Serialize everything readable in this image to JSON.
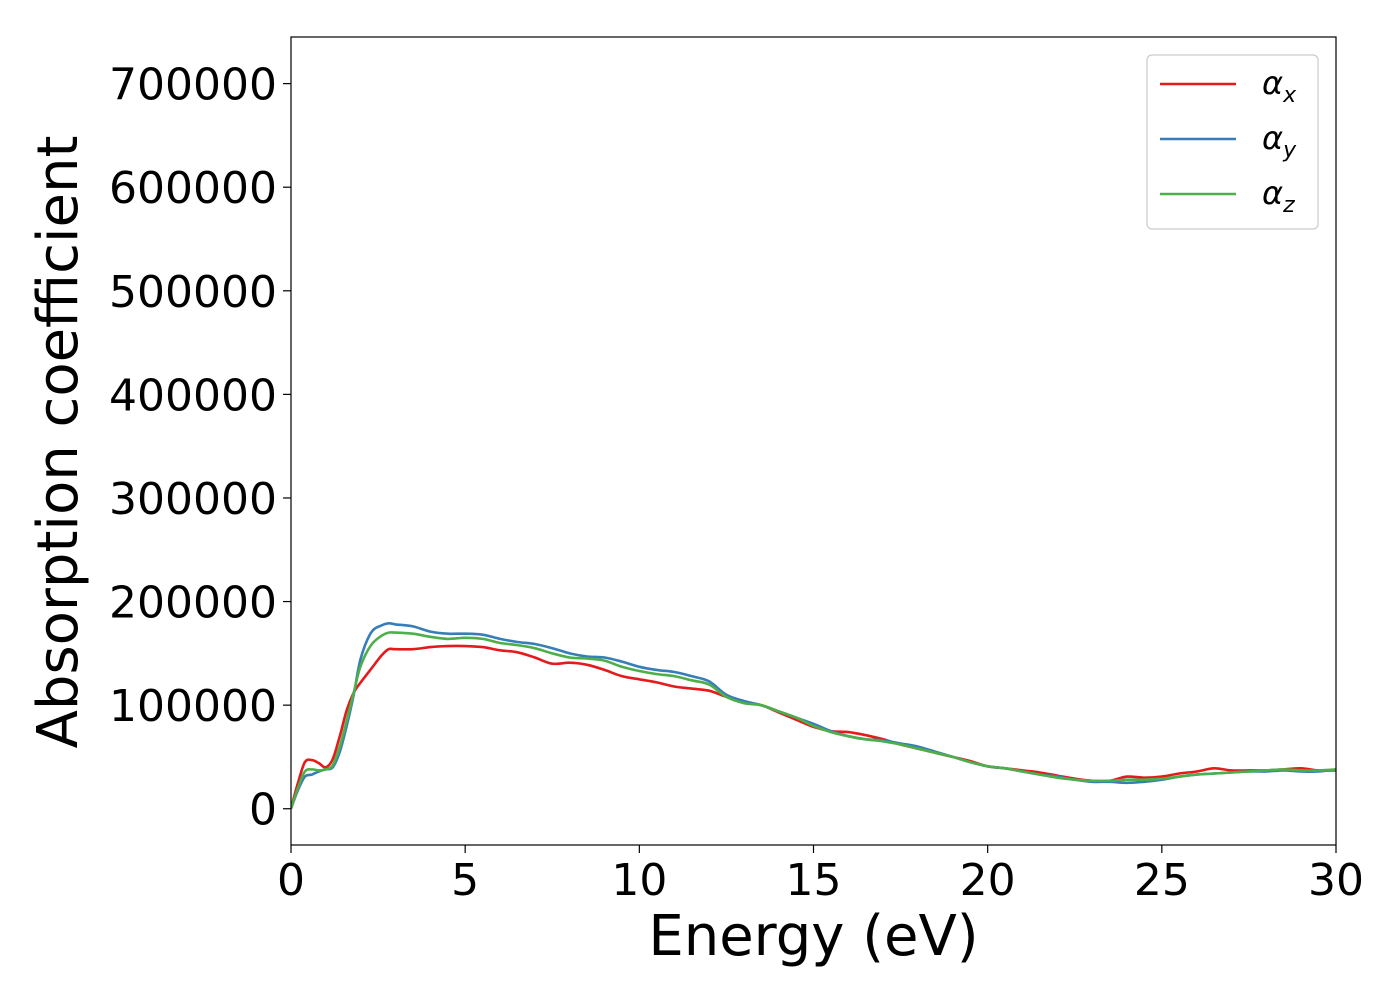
{
  "chart_data": {
    "type": "line",
    "title": "",
    "xlabel": "Energy (eV)",
    "ylabel": "Absorption coefficient",
    "xlim": [
      0,
      30
    ],
    "ylim": [
      -35000,
      745000
    ],
    "xticks": [
      0,
      5,
      10,
      15,
      20,
      25,
      30
    ],
    "xtick_labels": [
      "0",
      "5",
      "10",
      "15",
      "20",
      "25",
      "30"
    ],
    "yticks": [
      0,
      100000,
      200000,
      300000,
      400000,
      500000,
      600000,
      700000
    ],
    "ytick_labels": [
      "0",
      "100000",
      "200000",
      "300000",
      "400000",
      "500000",
      "600000",
      "700000"
    ],
    "grid": false,
    "legend_position": "top-right",
    "series": [
      {
        "name": "α",
        "subscript": "x",
        "color": "#e41a1c",
        "x": [
          0,
          0.2,
          0.4,
          0.6,
          0.8,
          1.0,
          1.2,
          1.4,
          1.6,
          1.8,
          2.0,
          2.3,
          2.6,
          2.8,
          3.0,
          3.5,
          4.0,
          4.5,
          5.0,
          5.5,
          6.0,
          6.5,
          7.0,
          7.5,
          8.0,
          8.5,
          9.0,
          9.5,
          10.0,
          10.5,
          11.0,
          11.5,
          12.0,
          12.5,
          13.0,
          13.5,
          14.0,
          14.5,
          15.0,
          15.5,
          16.0,
          16.5,
          17.0,
          17.5,
          18.0,
          18.5,
          19.0,
          19.5,
          20.0,
          20.5,
          21.0,
          21.5,
          22.0,
          22.5,
          23.0,
          23.5,
          24.0,
          24.5,
          25.0,
          25.5,
          26.0,
          26.5,
          27.0,
          27.5,
          28.0,
          28.5,
          29.0,
          29.5,
          30.0
        ],
        "y": [
          0,
          25000,
          45000,
          47000,
          44000,
          40000,
          48000,
          70000,
          95000,
          112000,
          122000,
          135000,
          148000,
          154000,
          154000,
          154000,
          156000,
          157000,
          157000,
          156000,
          153000,
          151000,
          146000,
          140000,
          141000,
          139000,
          134000,
          128000,
          125000,
          122000,
          118000,
          116000,
          114000,
          108000,
          103000,
          100000,
          93000,
          86000,
          79000,
          75000,
          74000,
          71000,
          67000,
          62000,
          58000,
          54000,
          50000,
          46000,
          41000,
          39000,
          37000,
          35000,
          32000,
          29000,
          27000,
          27000,
          31000,
          30000,
          31000,
          34000,
          36000,
          39000,
          37000,
          37000,
          37000,
          38000,
          39000,
          37000,
          37000
        ]
      },
      {
        "name": "α",
        "subscript": "y",
        "color": "#377eb8",
        "x": [
          0,
          0.2,
          0.4,
          0.6,
          0.8,
          1.0,
          1.2,
          1.4,
          1.6,
          1.8,
          2.0,
          2.3,
          2.6,
          2.8,
          3.0,
          3.5,
          4.0,
          4.5,
          5.0,
          5.5,
          6.0,
          6.5,
          7.0,
          7.5,
          8.0,
          8.5,
          9.0,
          9.5,
          10.0,
          10.5,
          11.0,
          11.5,
          12.0,
          12.5,
          13.0,
          13.5,
          14.0,
          14.5,
          15.0,
          15.5,
          16.0,
          16.5,
          17.0,
          17.5,
          18.0,
          18.5,
          19.0,
          19.5,
          20.0,
          20.5,
          21.0,
          21.5,
          22.0,
          22.5,
          23.0,
          23.5,
          24.0,
          24.5,
          25.0,
          25.5,
          26.0,
          26.5,
          27.0,
          27.5,
          28.0,
          28.5,
          29.0,
          29.5,
          30.0
        ],
        "y": [
          0,
          18000,
          31000,
          33000,
          36000,
          38000,
          40000,
          55000,
          80000,
          110000,
          145000,
          170000,
          177000,
          179000,
          178000,
          176000,
          171000,
          169000,
          169000,
          168000,
          164000,
          161000,
          159000,
          155000,
          150000,
          147000,
          146000,
          142000,
          137000,
          134000,
          132000,
          128000,
          123000,
          110000,
          104000,
          100000,
          94000,
          88000,
          82000,
          75000,
          70000,
          67000,
          66000,
          63000,
          60000,
          55000,
          50000,
          45000,
          41000,
          39000,
          36000,
          33000,
          31000,
          28000,
          26000,
          26000,
          25000,
          26000,
          28000,
          31000,
          33000,
          34000,
          35000,
          36000,
          36000,
          37000,
          36000,
          36000,
          38000
        ]
      },
      {
        "name": "α",
        "subscript": "z",
        "color": "#4daf4a",
        "x": [
          0,
          0.2,
          0.4,
          0.6,
          0.8,
          1.0,
          1.2,
          1.4,
          1.6,
          1.8,
          2.0,
          2.3,
          2.6,
          2.8,
          3.0,
          3.5,
          4.0,
          4.5,
          5.0,
          5.5,
          6.0,
          6.5,
          7.0,
          7.5,
          8.0,
          8.5,
          9.0,
          9.5,
          10.0,
          10.5,
          11.0,
          11.5,
          12.0,
          12.5,
          13.0,
          13.5,
          14.0,
          14.5,
          15.0,
          15.5,
          16.0,
          16.5,
          17.0,
          17.5,
          18.0,
          18.5,
          19.0,
          19.5,
          20.0,
          20.5,
          21.0,
          21.5,
          22.0,
          22.5,
          23.0,
          23.5,
          24.0,
          24.5,
          25.0,
          25.5,
          26.0,
          26.5,
          27.0,
          27.5,
          28.0,
          28.5,
          29.0,
          29.5,
          30.0
        ],
        "y": [
          0,
          20000,
          36000,
          38000,
          37000,
          38000,
          42000,
          60000,
          85000,
          112000,
          138000,
          158000,
          167000,
          170000,
          170000,
          169000,
          166000,
          164000,
          165000,
          164000,
          160000,
          158000,
          155000,
          150000,
          146000,
          145000,
          143000,
          137000,
          133000,
          130000,
          128000,
          124000,
          120000,
          108000,
          102000,
          100000,
          94000,
          88000,
          80000,
          74000,
          70000,
          67000,
          65000,
          62000,
          58000,
          54000,
          50000,
          45000,
          41000,
          39000,
          36000,
          33000,
          30000,
          28000,
          27000,
          27000,
          28000,
          28000,
          29000,
          31000,
          33000,
          34000,
          35000,
          36000,
          37000,
          38000,
          37000,
          37000,
          38000
        ]
      }
    ]
  }
}
